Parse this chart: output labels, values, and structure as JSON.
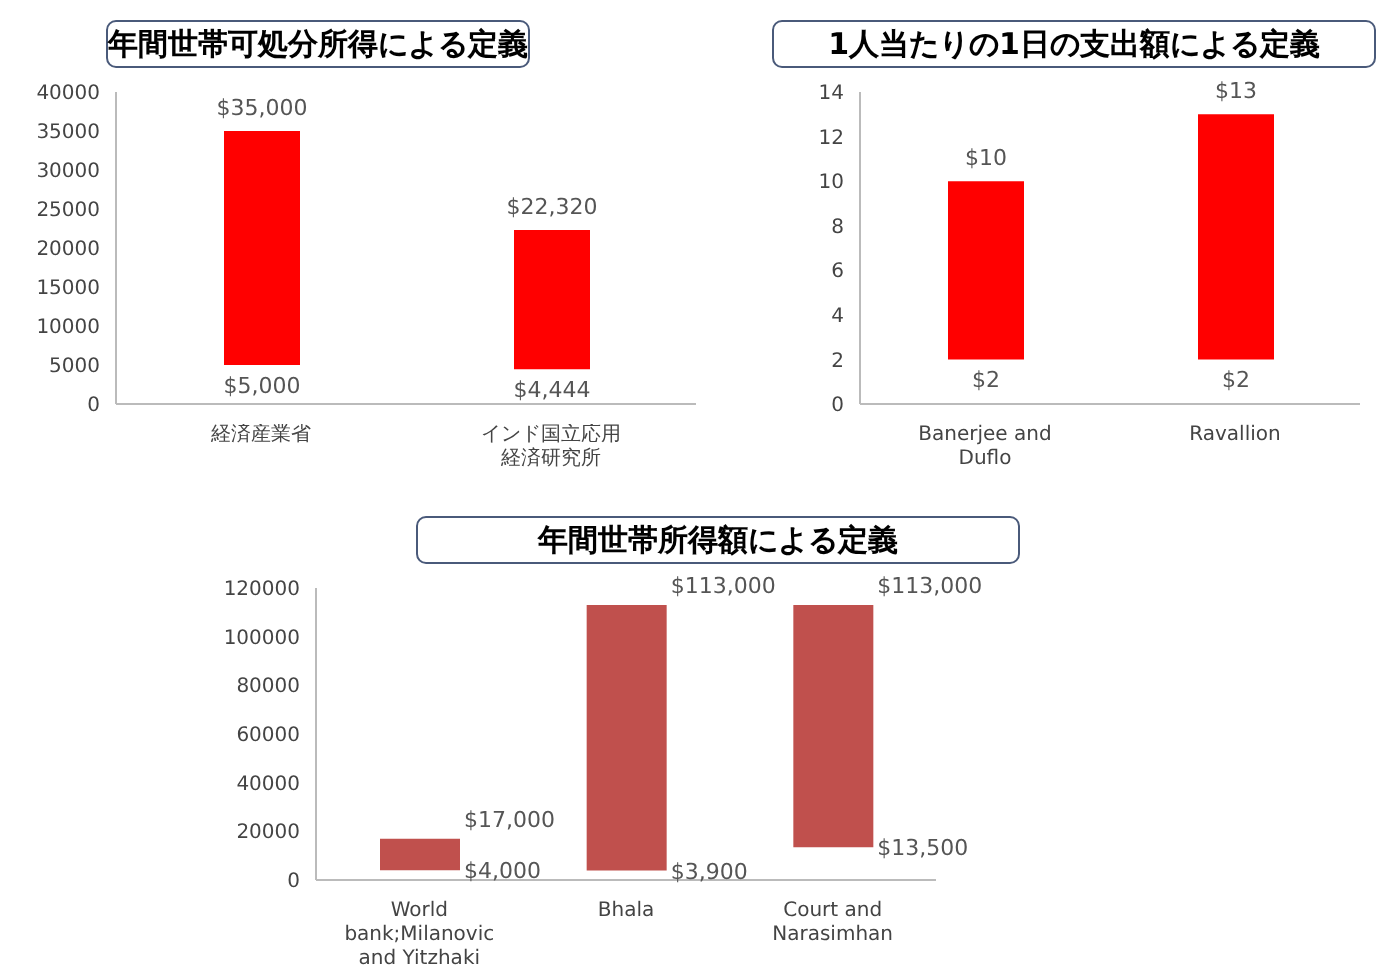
{
  "chart_data": [
    {
      "type": "bar",
      "title": "年間世帯可処分所得による定義",
      "categories": [
        "経済産業省",
        "インド国立応用経済研究所"
      ],
      "base": [
        5000,
        4444
      ],
      "values": [
        30000,
        17876
      ],
      "color": "#ff0000",
      "ylim": [
        0,
        40000
      ],
      "yticks": [
        0,
        5000,
        10000,
        15000,
        20000,
        25000,
        30000,
        35000,
        40000
      ],
      "grid": false,
      "legend": false,
      "annotations": [
        {
          "text": "$35,000",
          "x": "経済産業省",
          "y": 35000
        },
        {
          "text": "$5,000",
          "x": "経済産業省",
          "y": 5000
        },
        {
          "text": "$22,320",
          "x": "インド国立応用経済研究所",
          "y": 22320
        },
        {
          "text": "$4,444",
          "x": "インド国立応用経済研究所",
          "y": 4444
        }
      ]
    },
    {
      "type": "bar",
      "title": "1人当たりの1日の支出額による定義",
      "categories": [
        "Banerjee and Duflo",
        "Ravallion"
      ],
      "base": [
        2,
        2
      ],
      "values": [
        8,
        11
      ],
      "color": "#ff0000",
      "ylim": [
        0,
        14
      ],
      "yticks": [
        0,
        2,
        4,
        6,
        8,
        10,
        12,
        14
      ],
      "grid": false,
      "legend": false,
      "annotations": [
        {
          "text": "$10",
          "x": "Banerjee and Duflo",
          "y": 10
        },
        {
          "text": "$2",
          "x": "Banerjee and Duflo",
          "y": 2
        },
        {
          "text": "$13",
          "x": "Ravallion",
          "y": 13
        },
        {
          "text": "$2",
          "x": "Ravallion",
          "y": 2
        }
      ]
    },
    {
      "type": "bar",
      "title": "年間世帯所得額による定義",
      "categories": [
        "World bank;Milanovic and Yitzhaki",
        "Bhala",
        "Court and Narasimhan"
      ],
      "base": [
        4000,
        3900,
        13500
      ],
      "values": [
        13000,
        109100,
        99500
      ],
      "color": "#c0504d",
      "ylim": [
        0,
        120000
      ],
      "yticks": [
        0,
        20000,
        40000,
        60000,
        80000,
        100000,
        120000
      ],
      "grid": false,
      "legend": false,
      "annotations": [
        {
          "text": "$17,000",
          "x": "World bank;Milanovic and Yitzhaki",
          "y": 17000
        },
        {
          "text": "$4,000",
          "x": "World bank;Milanovic and Yitzhaki",
          "y": 4000
        },
        {
          "text": "$113,000",
          "x": "Bhala",
          "y": 113000
        },
        {
          "text": "$3,900",
          "x": "Bhala",
          "y": 3900
        },
        {
          "text": "$113,000",
          "x": "Court and Narasimhan",
          "y": 113000
        },
        {
          "text": "$13,500",
          "x": "Court and Narasimhan",
          "y": 13500
        }
      ]
    }
  ]
}
